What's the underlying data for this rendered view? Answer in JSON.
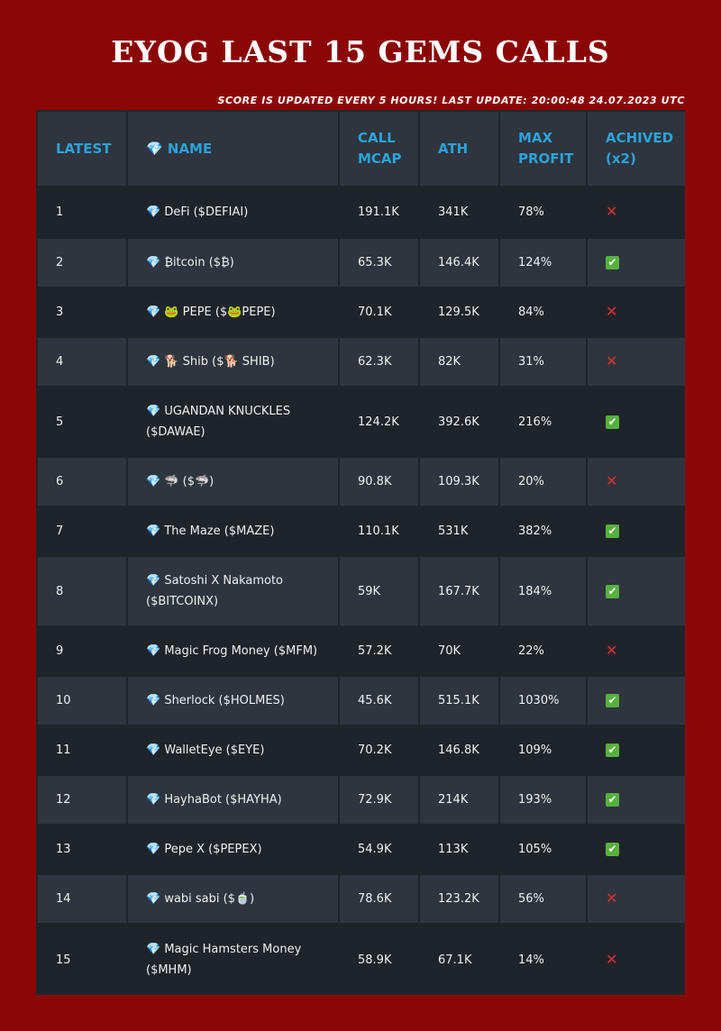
{
  "title": "EYOG LAST 15 GEMS CALLS",
  "subtitle": "SCORE IS UPDATED EVERY 5 HOURS! LAST UPDATE: 20:00:48 24.07.2023 UTC",
  "icons": {
    "gem": "💎",
    "check": "✔",
    "cross": "✕"
  },
  "columns": [
    {
      "line1": "LATEST",
      "line2": ""
    },
    {
      "line1": "💎 NAME",
      "line2": ""
    },
    {
      "line1": "CALL",
      "line2": "MCAP"
    },
    {
      "line1": "ATH",
      "line2": ""
    },
    {
      "line1": "MAX",
      "line2": "PROFIT"
    },
    {
      "line1": "ACHIVED",
      "line2": "(x2)"
    }
  ],
  "rows": [
    {
      "latest": "1",
      "name": "💎 DeFi ($DEFIAI)",
      "mcap": "191.1K",
      "ath": "341K",
      "profit": "78%",
      "achieved": false
    },
    {
      "latest": "2",
      "name": "💎 ₿itcoin ($₿)",
      "mcap": "65.3K",
      "ath": "146.4K",
      "profit": "124%",
      "achieved": true
    },
    {
      "latest": "3",
      "name": "💎 🐸 PEPE ($🐸PEPE)",
      "mcap": "70.1K",
      "ath": "129.5K",
      "profit": "84%",
      "achieved": false
    },
    {
      "latest": "4",
      "name": "💎 🐕 Shib ($🐕 SHIB)",
      "mcap": "62.3K",
      "ath": "82K",
      "profit": "31%",
      "achieved": false
    },
    {
      "latest": "5",
      "name": "💎 UGANDAN KNUCKLES ($DAWAE)",
      "mcap": "124.2K",
      "ath": "392.6K",
      "profit": "216%",
      "achieved": true
    },
    {
      "latest": "6",
      "name": "💎 🦈 ($🦈)",
      "mcap": "90.8K",
      "ath": "109.3K",
      "profit": "20%",
      "achieved": false
    },
    {
      "latest": "7",
      "name": "💎 The Maze ($MAZE)",
      "mcap": "110.1K",
      "ath": "531K",
      "profit": "382%",
      "achieved": true
    },
    {
      "latest": "8",
      "name": "💎 Satoshi X Nakamoto ($BITCOINX)",
      "mcap": "59K",
      "ath": "167.7K",
      "profit": "184%",
      "achieved": true
    },
    {
      "latest": "9",
      "name": "💎 Magic Frog Money ($MFM)",
      "mcap": "57.2K",
      "ath": "70K",
      "profit": "22%",
      "achieved": false
    },
    {
      "latest": "10",
      "name": "💎 Sherlock ($HOLMES)",
      "mcap": "45.6K",
      "ath": "515.1K",
      "profit": "1030%",
      "achieved": true
    },
    {
      "latest": "11",
      "name": "💎 WalletEye ($EYE)",
      "mcap": "70.2K",
      "ath": "146.8K",
      "profit": "109%",
      "achieved": true
    },
    {
      "latest": "12",
      "name": "💎 HayhaBot ($HAYHA)",
      "mcap": "72.9K",
      "ath": "214K",
      "profit": "193%",
      "achieved": true
    },
    {
      "latest": "13",
      "name": "💎 Pepe X ($PEPEX)",
      "mcap": "54.9K",
      "ath": "113K",
      "profit": "105%",
      "achieved": true
    },
    {
      "latest": "14",
      "name": "💎 wabi sabi ($🍵)",
      "mcap": "78.6K",
      "ath": "123.2K",
      "profit": "56%",
      "achieved": false
    },
    {
      "latest": "15",
      "name": "💎 Magic Hamsters Money ($MHM)",
      "mcap": "58.9K",
      "ath": "67.1K",
      "profit": "14%",
      "achieved": false
    }
  ]
}
